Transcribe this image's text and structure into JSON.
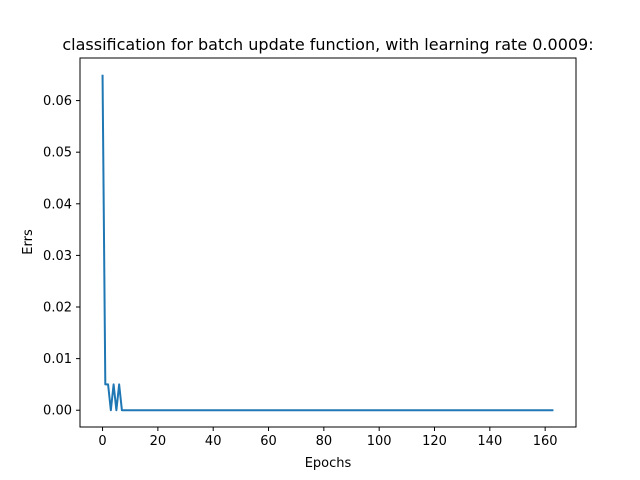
{
  "chart_data": {
    "type": "line",
    "title": "classification for batch update function, with learning rate 0.0009:",
    "xlabel": "Epochs",
    "ylabel": "Errs",
    "xlim": [
      -8.15,
      171.15
    ],
    "ylim": [
      -0.00325,
      0.06825
    ],
    "xticks": [
      0,
      20,
      40,
      60,
      80,
      100,
      120,
      140,
      160
    ],
    "yticks": [
      0.0,
      0.01,
      0.02,
      0.03,
      0.04,
      0.05,
      0.06
    ],
    "ytick_labels": [
      "0.00",
      "0.01",
      "0.02",
      "0.03",
      "0.04",
      "0.05",
      "0.06"
    ],
    "grid": false,
    "series": [
      {
        "color": "#1f77b4",
        "x": [
          0,
          1,
          2,
          3,
          4,
          5,
          6,
          7,
          8,
          9,
          10,
          163
        ],
        "y": [
          0.065,
          0.005,
          0.005,
          0.0,
          0.005,
          0.0,
          0.005,
          0.0,
          0.0,
          0.0,
          0.0,
          0.0
        ]
      }
    ]
  }
}
